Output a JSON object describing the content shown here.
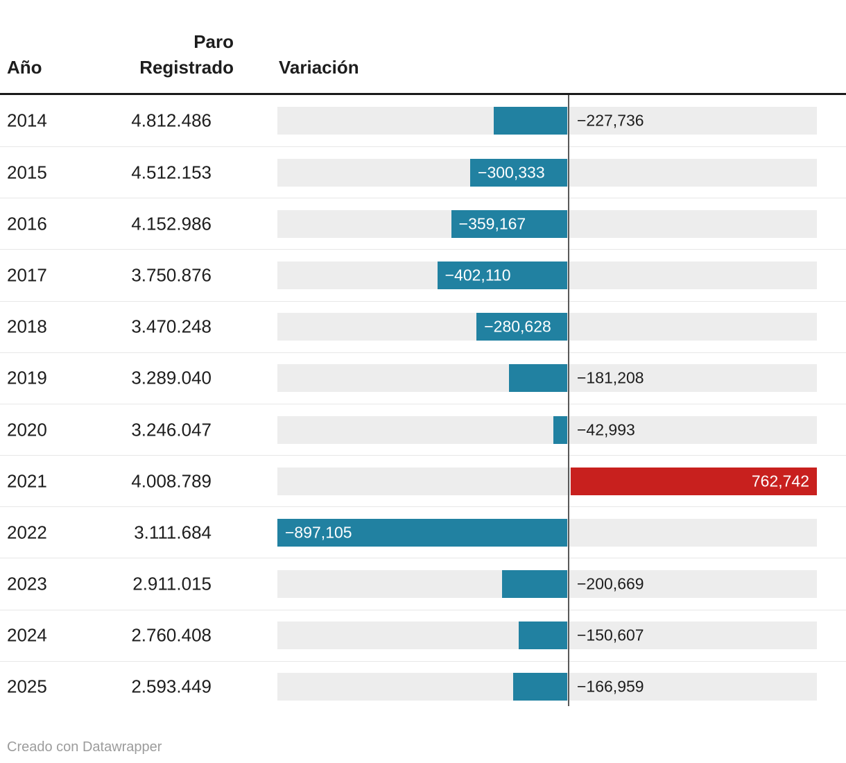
{
  "header": {
    "col_year": "Año",
    "col_paro": "Paro Registrado",
    "col_variation": "Variación"
  },
  "footer": {
    "credit": "Creado con Datawrapper"
  },
  "colors": {
    "bar_negative": "#2181a1",
    "bar_positive": "#c8201e",
    "track": "#ededed",
    "zero_line": "#595959",
    "header_rule": "#1a1a1a",
    "row_separator": "#e7e7e7",
    "text": "#1d1d1d",
    "label_inside": "#ffffff",
    "credit_text": "#9c9c9c"
  },
  "chart_data": {
    "type": "bar",
    "title": "",
    "columns": [
      "Año",
      "Paro Registrado",
      "Variación"
    ],
    "axis": {
      "min": -897105,
      "max": 762742,
      "zero_line": true
    },
    "legend": "none",
    "rows": [
      {
        "year": "2014",
        "paro_registrado": "4.812.486",
        "variation": -227736,
        "variation_label": "−227,736",
        "label_position": "outside"
      },
      {
        "year": "2015",
        "paro_registrado": "4.512.153",
        "variation": -300333,
        "variation_label": "−300,333",
        "label_position": "inside"
      },
      {
        "year": "2016",
        "paro_registrado": "4.152.986",
        "variation": -359167,
        "variation_label": "−359,167",
        "label_position": "inside"
      },
      {
        "year": "2017",
        "paro_registrado": "3.750.876",
        "variation": -402110,
        "variation_label": "−402,110",
        "label_position": "inside"
      },
      {
        "year": "2018",
        "paro_registrado": "3.470.248",
        "variation": -280628,
        "variation_label": "−280,628",
        "label_position": "inside"
      },
      {
        "year": "2019",
        "paro_registrado": "3.289.040",
        "variation": -181208,
        "variation_label": "−181,208",
        "label_position": "outside"
      },
      {
        "year": "2020",
        "paro_registrado": "3.246.047",
        "variation": -42993,
        "variation_label": "−42,993",
        "label_position": "outside"
      },
      {
        "year": "2021",
        "paro_registrado": "4.008.789",
        "variation": 762742,
        "variation_label": "762,742",
        "label_position": "inside"
      },
      {
        "year": "2022",
        "paro_registrado": "3.111.684",
        "variation": -897105,
        "variation_label": "−897,105",
        "label_position": "inside"
      },
      {
        "year": "2023",
        "paro_registrado": "2.911.015",
        "variation": -200669,
        "variation_label": "−200,669",
        "label_position": "outside"
      },
      {
        "year": "2024",
        "paro_registrado": "2.760.408",
        "variation": -150607,
        "variation_label": "−150,607",
        "label_position": "outside"
      },
      {
        "year": "2025",
        "paro_registrado": "2.593.449",
        "variation": -166959,
        "variation_label": "−166,959",
        "label_position": "outside"
      }
    ]
  }
}
